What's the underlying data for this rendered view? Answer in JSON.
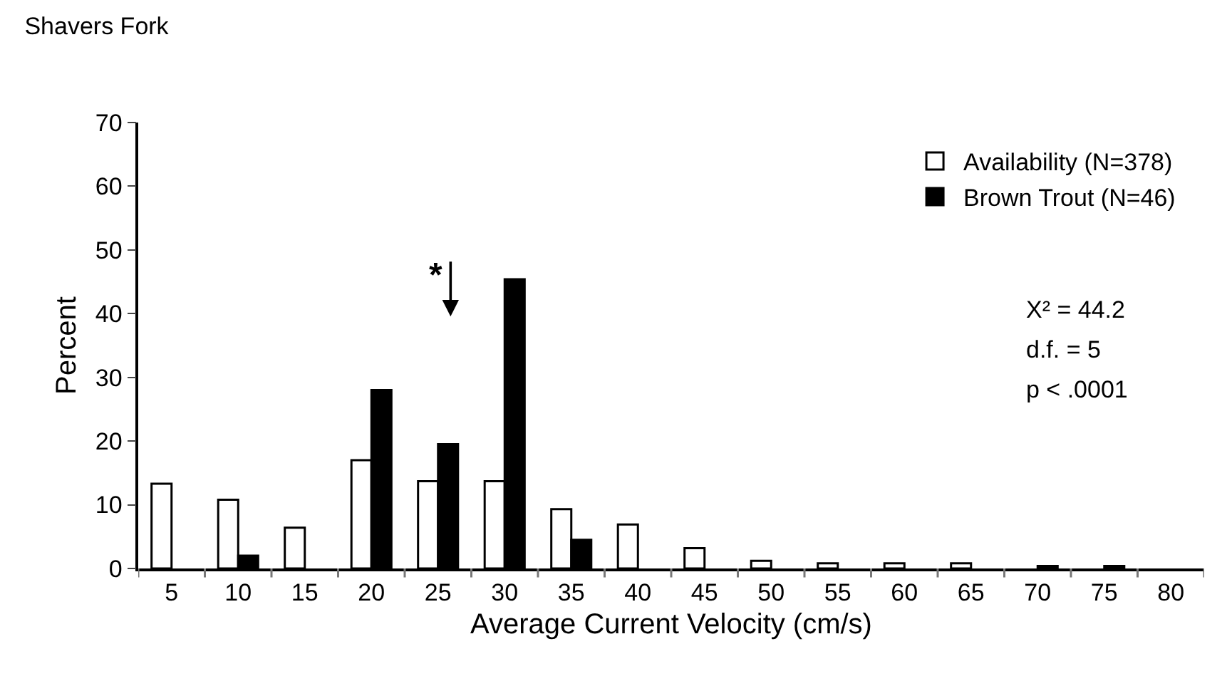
{
  "chart_data": {
    "type": "bar",
    "title": "Shavers Fork",
    "xlabel": "Average Current Velocity (cm/s)",
    "ylabel": "Percent",
    "categories": [
      "5",
      "10",
      "15",
      "20",
      "25",
      "30",
      "35",
      "40",
      "45",
      "50",
      "55",
      "60",
      "65",
      "70",
      "75",
      "80"
    ],
    "series": [
      {
        "name": "Availability (N=378)",
        "color": "#ffffff",
        "values": [
          13.3,
          10.8,
          6.4,
          17.0,
          13.7,
          13.7,
          9.3,
          6.9,
          3.2,
          1.2,
          0.8,
          0.8,
          0.8,
          null,
          null,
          null
        ]
      },
      {
        "name": "Brown Trout (N=46)",
        "color": "#000000",
        "values": [
          null,
          2.0,
          null,
          28.0,
          19.5,
          45.4,
          4.5,
          null,
          null,
          null,
          null,
          null,
          null,
          0.4,
          0.4,
          null
        ]
      }
    ],
    "ylim": [
      0,
      70
    ],
    "yticks": [
      0,
      10,
      20,
      30,
      40,
      50,
      60,
      70
    ],
    "legend": "top right",
    "annotations": [
      "*",
      "X² = 44.2",
      "d.f. = 5",
      "p < .0001"
    ]
  }
}
